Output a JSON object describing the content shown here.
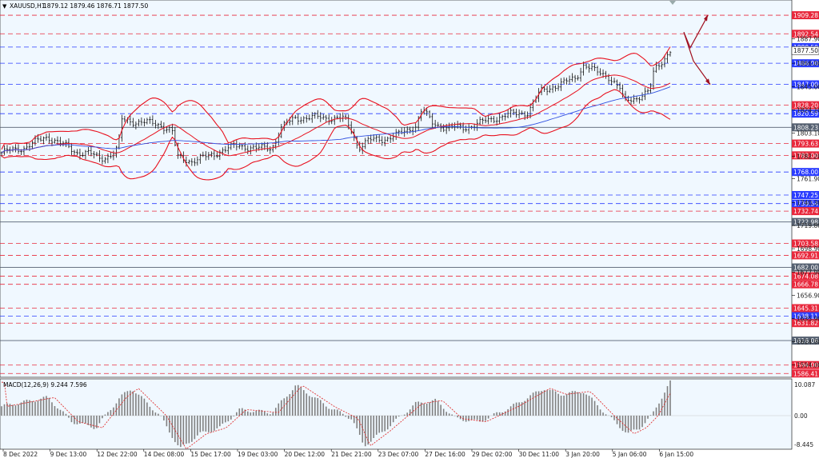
{
  "header": {
    "symbol": "XAUUSD,H1",
    "ohlc": "1879.12 1879.46 1876.71 1877.50"
  },
  "macd": {
    "label": "MACD(12,26,9) 9.244 7.596",
    "scale_labels": [
      "10.087",
      "0.00",
      "-8.445"
    ]
  },
  "price_axis": {
    "ticks": [
      "1887.90",
      "1866.00",
      "1845.00",
      "1824.10",
      "1803.10",
      "1782.20",
      "1761.90",
      "1740.30",
      "1719.80",
      "1698.90",
      "1677.90",
      "1656.90",
      "1635.90",
      "1614.90",
      "1594.00"
    ]
  },
  "levels": [
    {
      "price": 1909.28,
      "label": "1909.28",
      "kind": "resistance"
    },
    {
      "price": 1892.54,
      "label": "1892.54",
      "kind": "resistance"
    },
    {
      "price": 1880.59,
      "label": "1880.59",
      "kind": "support"
    },
    {
      "price": 1866.0,
      "label": "1866.00",
      "kind": "support"
    },
    {
      "price": 1847.0,
      "label": "1847.00",
      "kind": "support"
    },
    {
      "price": 1828.2,
      "label": "1828.20",
      "kind": "resistance"
    },
    {
      "price": 1820.59,
      "label": "1820.59",
      "kind": "support"
    },
    {
      "price": 1808.23,
      "label": "1808.23",
      "kind": "pivot"
    },
    {
      "price": 1793.63,
      "label": "1793.63",
      "kind": "resistance"
    },
    {
      "price": 1783.0,
      "label": "1783.00",
      "kind": "resistance"
    },
    {
      "price": 1768.0,
      "label": "1768.00",
      "kind": "support"
    },
    {
      "price": 1747.25,
      "label": "1747.25",
      "kind": "support"
    },
    {
      "price": 1739.54,
      "label": "1739.54",
      "kind": "support"
    },
    {
      "price": 1732.74,
      "label": "1732.74",
      "kind": "resistance"
    },
    {
      "price": 1722.98,
      "label": "1722.98",
      "kind": "pivot"
    },
    {
      "price": 1703.58,
      "label": "1703.58",
      "kind": "resistance"
    },
    {
      "price": 1692.91,
      "label": "1692.91",
      "kind": "resistance"
    },
    {
      "price": 1682.0,
      "label": "1682.00",
      "kind": "pivot"
    },
    {
      "price": 1674.08,
      "label": "1674.08",
      "kind": "resistance"
    },
    {
      "price": 1666.78,
      "label": "1666.78",
      "kind": "resistance"
    },
    {
      "price": 1645.31,
      "label": "1645.31",
      "kind": "resistance"
    },
    {
      "price": 1638.11,
      "label": "1638.11",
      "kind": "support"
    },
    {
      "price": 1631.82,
      "label": "1631.82",
      "kind": "resistance"
    },
    {
      "price": 1616.06,
      "label": "1616.06",
      "kind": "pivot"
    },
    {
      "price": 1594.0,
      "label": "1594.00",
      "kind": "resistance"
    },
    {
      "price": 1586.41,
      "label": "1586.41",
      "kind": "resistance"
    }
  ],
  "current_price": {
    "value": 1877.5,
    "label": "1877.50"
  },
  "time_axis": [
    "8 Dec 2022",
    "9 Dec 13:00",
    "12 Dec 22:00",
    "14 Dec 08:00",
    "15 Dec 17:00",
    "19 Dec 03:00",
    "20 Dec 12:00",
    "21 Dec 21:00",
    "23 Dec 07:00",
    "27 Dec 16:00",
    "29 Dec 02:00",
    "30 Dec 11:00",
    "3 Jan 20:00",
    "5 Jan 06:00",
    "6 Jan 15:00"
  ],
  "colors": {
    "background": "#f0f8ff",
    "resistance": "#e8283c",
    "support": "#2a3cff",
    "pivot": "#556070",
    "bollinger": "#e8101e",
    "moving_average": "#3050e0",
    "candles": "#111111",
    "macd_hist": "#808080",
    "macd_signal": "#e02020",
    "forecast_arrow": "#a01020"
  },
  "chart_data": {
    "type": "candlestick",
    "symbol": "XAUUSD",
    "timeframe": "H1",
    "y_range": [
      1583,
      1923
    ],
    "series": [
      {
        "name": "XAUUSD,H1",
        "x": [
          "8 Dec 2022",
          "9 Dec 13:00",
          "12 Dec 22:00",
          "14 Dec 08:00",
          "15 Dec 17:00",
          "19 Dec 03:00",
          "20 Dec 12:00",
          "21 Dec 21:00",
          "23 Dec 07:00",
          "27 Dec 16:00",
          "29 Dec 02:00",
          "30 Dec 11:00",
          "3 Jan 20:00",
          "5 Jan 06:00",
          "6 Jan 15:00"
        ],
        "close": [
          1785,
          1791,
          1808,
          1781,
          1792,
          1790,
          1816,
          1816,
          1796,
          1809,
          1808,
          1820,
          1857,
          1832,
          1877.5
        ]
      }
    ],
    "macd": {
      "params": "12,26,9",
      "main": 9.244,
      "signal": 7.596,
      "range": [
        -8.445,
        10.087
      ]
    }
  }
}
